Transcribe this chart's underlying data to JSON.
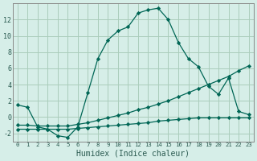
{
  "xlabel": "Humidex (Indice chaleur)",
  "background_color": "#d6eee8",
  "grid_color": "#aaccbb",
  "line_color": "#006655",
  "xlim": [
    -0.5,
    23.5
  ],
  "ylim": [
    -3,
    14
  ],
  "xticks": [
    0,
    1,
    2,
    3,
    4,
    5,
    6,
    7,
    8,
    9,
    10,
    11,
    12,
    13,
    14,
    15,
    16,
    17,
    18,
    19,
    20,
    21,
    22,
    23
  ],
  "yticks": [
    -2,
    0,
    2,
    4,
    6,
    8,
    10,
    12
  ],
  "series1_x": [
    0,
    1,
    2,
    3,
    4,
    5,
    6,
    7,
    8,
    9,
    10,
    11,
    12,
    13,
    14,
    15,
    16,
    17,
    18,
    19,
    20,
    21,
    22,
    23
  ],
  "series1_y": [
    1.5,
    1.2,
    -1.2,
    -1.5,
    -2.3,
    -2.5,
    -1.2,
    3.0,
    7.2,
    9.5,
    10.6,
    11.1,
    12.8,
    13.2,
    13.4,
    12.0,
    9.2,
    7.2,
    6.2,
    3.8,
    2.8,
    4.8,
    0.7,
    0.3
  ],
  "series2_x": [
    0,
    1,
    2,
    3,
    4,
    5,
    6,
    7,
    8,
    9,
    10,
    11,
    12,
    13,
    14,
    15,
    16,
    17,
    18,
    19,
    20,
    21,
    22,
    23
  ],
  "series2_y": [
    -1.0,
    -1.0,
    -1.1,
    -1.1,
    -1.1,
    -1.1,
    -0.9,
    -0.7,
    -0.4,
    -0.1,
    0.2,
    0.5,
    0.9,
    1.2,
    1.6,
    2.0,
    2.5,
    3.0,
    3.5,
    4.0,
    4.5,
    5.0,
    5.7,
    6.3
  ],
  "series3_x": [
    0,
    1,
    2,
    3,
    4,
    5,
    6,
    7,
    8,
    9,
    10,
    11,
    12,
    13,
    14,
    15,
    16,
    17,
    18,
    19,
    20,
    21,
    22,
    23
  ],
  "series3_y": [
    -1.5,
    -1.5,
    -1.5,
    -1.5,
    -1.5,
    -1.5,
    -1.4,
    -1.3,
    -1.2,
    -1.1,
    -1.0,
    -0.9,
    -0.8,
    -0.7,
    -0.5,
    -0.4,
    -0.3,
    -0.2,
    -0.1,
    -0.1,
    -0.1,
    -0.1,
    -0.1,
    -0.1
  ]
}
